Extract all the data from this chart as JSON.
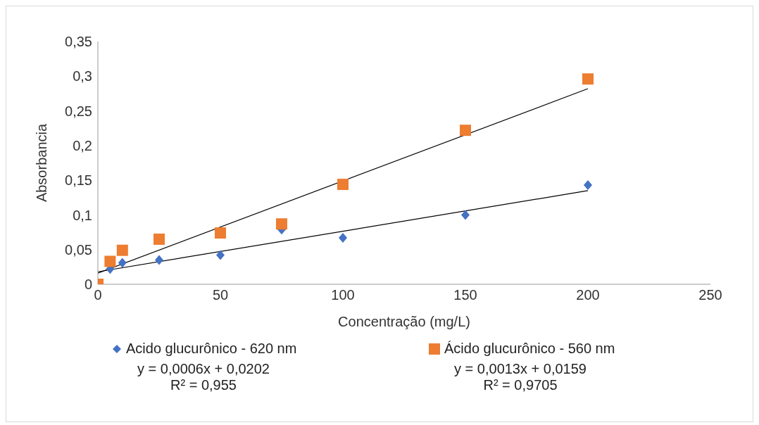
{
  "chart_data": {
    "type": "scatter",
    "xlabel": "Concentração (mg/L)",
    "ylabel": "Absorbancia",
    "xlim": [
      0,
      250
    ],
    "xticks": [
      0,
      50,
      100,
      150,
      200,
      250
    ],
    "ylim": [
      0,
      0.35
    ],
    "yticks": [
      0,
      {
        "value": 0.05,
        "label": "0,05"
      },
      {
        "value": 0.1,
        "label": "0,1"
      },
      {
        "value": 0.15,
        "label": "0,15"
      },
      {
        "value": 0.2,
        "label": "0,2"
      },
      {
        "value": 0.25,
        "label": "0,25"
      },
      {
        "value": 0.3,
        "label": "0,3"
      },
      {
        "value": 0.35,
        "label": "0,35"
      }
    ],
    "grid": false,
    "legend": "bottom",
    "series": [
      {
        "name": "Acido glucurônico - 620 nm",
        "color": "#4472c4",
        "marker": "diamond",
        "x": [
          5,
          10,
          25,
          50,
          75,
          100,
          150,
          200
        ],
        "values": [
          0.022,
          0.031,
          0.035,
          0.042,
          0.079,
          0.067,
          0.1,
          0.143
        ]
      },
      {
        "name": "Ácido glucurônico - 560 nm",
        "color": "#ed7d31",
        "marker": "square",
        "x": [
          0,
          5,
          10,
          25,
          50,
          75,
          100,
          150,
          200
        ],
        "values": [
          0,
          0.033,
          0.049,
          0.065,
          0.074,
          0.087,
          0.144,
          0.222,
          0.296
        ]
      },
      {
        "type": "line",
        "color": "#000000",
        "marker": "none",
        "x": [
          0,
          200
        ],
        "values": [
          0.018,
          0.135
        ]
      },
      {
        "type": "line",
        "color": "#000000",
        "marker": "none",
        "x": [
          0,
          200
        ],
        "values": [
          0.016,
          0.282
        ]
      }
    ],
    "annotations": [
      "y = 0,0006x + 0,0202",
      "R² = 0,955",
      "y = 0,0013x + 0,0159",
      "R² = 0,9705"
    ]
  }
}
